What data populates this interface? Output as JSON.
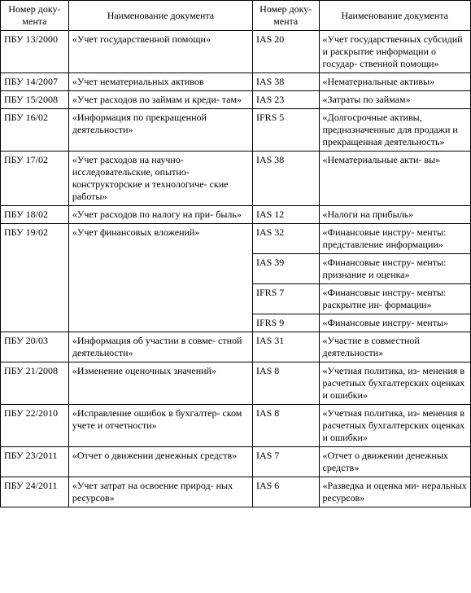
{
  "headers": {
    "h1": "Номер доку-\nмента",
    "h2": "Наименование документа",
    "h3": "Номер доку-\nмента",
    "h4": "Наименование документа"
  },
  "rows": [
    {
      "c1": "ПБУ 13/2000",
      "c2": "«Учет государственной помощи»",
      "c3": "IAS 20",
      "c4": "«Учет государственных субсидий и раскрытие информации о государ-\nственной помощи»",
      "rs": 1
    },
    {
      "c1": "ПБУ 14/2007",
      "c2": "«Учет нематериальных активов",
      "c3": "IAS 38",
      "c4": "«Нематериальные активы»",
      "rs": 1
    },
    {
      "c1": "ПБУ 15/2008",
      "c2": "«Учет расходов по займам и креди-\nтам»",
      "c3": "IAS 23",
      "c4": "«Затраты по займам»",
      "rs": 1
    },
    {
      "c1": "ПБУ 16/02",
      "c2": "«Информация по прекращенной деятельности»",
      "c3": "IFRS 5",
      "c4": "«Долгосрочные активы, предназначенные для продажи и прекращенная деятельность»",
      "rs": 1
    },
    {
      "c1": "ПБУ 17/02",
      "c2": "«Учет расходов на научно-исследовательские, опытно-конструкторские и технологиче-\nские работы»",
      "c3": "IAS 38",
      "c4": "«Нематериальные акти-\nвы»",
      "rs": 1
    },
    {
      "c1": "ПБУ 18/02",
      "c2": "«Учет расходов по налогу на при-\nбыль»",
      "c3": "IAS 12",
      "c4": "«Налоги на прибыль»",
      "rs": 1
    },
    {
      "c1": "ПБУ 19/02",
      "c2": "«Учет финансовых вложений»",
      "c3": "IAS 32",
      "c4": "«Финансовые инстру-\nменты: представление информации»",
      "rs": 4,
      "sub": [
        {
          "c3": "IAS 39",
          "c4": "«Финансовые инстру-\nменты: признание и оценка»"
        },
        {
          "c3": "IFRS 7",
          "c4": "«Финансовые инстру-\nменты: раскрытие ин-\nформации»"
        },
        {
          "c3": "IFRS 9",
          "c4": "«Финансовые инстру-\nменты»"
        }
      ]
    },
    {
      "c1": "ПБУ 20/03",
      "c2": "«Информация об участии в совме-\nстной деятельности»",
      "c3": "IAS 31",
      "c4": "«Участие в совместной деятельности»",
      "rs": 1
    },
    {
      "c1": "ПБУ 21/2008",
      "c2": "«Изменение оценочных значений»",
      "c3": "IAS 8",
      "c4": "«Учетная политика, из-\nменения в расчетных бухгалтерских оценках и ошибки»",
      "rs": 1
    },
    {
      "c1": "ПБУ 22/2010",
      "c2": "«Исправление ошибок в бухгалтер-\nском учете и отчетности»",
      "c3": "IAS 8",
      "c4": "«Учетная политика, из-\nменения в расчетных бухгалтерских оценках и ошибки»",
      "rs": 1
    },
    {
      "c1": "ПБУ 23/2011",
      "c2": "«Отчет о движении денежных средств»",
      "c3": "IAS 7",
      "c4": "«Отчет о движении денежных средств»",
      "rs": 1
    },
    {
      "c1": "ПБУ 24/2011",
      "c2": "«Учет затрат на освоение природ-\nных ресурсов»",
      "c3": "IAS 6",
      "c4": "«Разведка и оценка ми-\nнеральных ресурсов»",
      "rs": 1
    }
  ]
}
